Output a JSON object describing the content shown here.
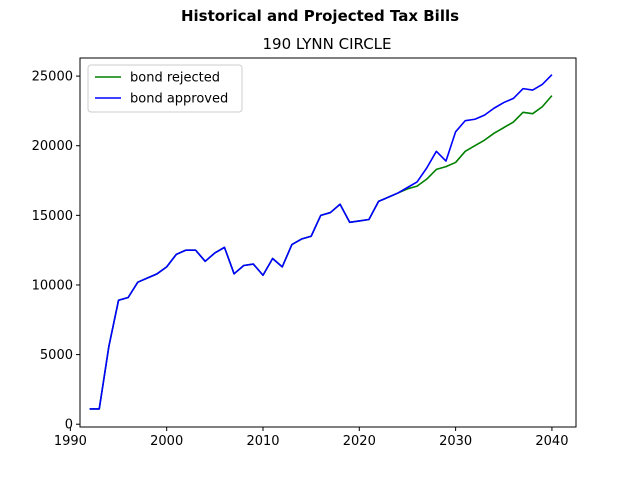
{
  "figure": {
    "suptitle": "Historical and Projected Tax Bills"
  },
  "chart_data": {
    "type": "line",
    "title": "190 LYNN CIRCLE",
    "xlabel": "",
    "ylabel": "",
    "xlim": [
      1991,
      2042.5
    ],
    "ylim": [
      -200,
      26300
    ],
    "xticks": [
      1990,
      2000,
      2010,
      2020,
      2030,
      2040
    ],
    "yticks": [
      0,
      5000,
      10000,
      15000,
      20000,
      25000
    ],
    "grid": false,
    "legend_position": "upper-left",
    "series": [
      {
        "name": "bond rejected",
        "color": "#008000",
        "x": [
          1992,
          1993,
          1994,
          1995,
          1996,
          1997,
          1998,
          1999,
          2000,
          2001,
          2002,
          2003,
          2004,
          2005,
          2006,
          2007,
          2008,
          2009,
          2010,
          2011,
          2012,
          2013,
          2014,
          2015,
          2016,
          2017,
          2018,
          2019,
          2020,
          2021,
          2022,
          2023,
          2024,
          2025,
          2026,
          2027,
          2028,
          2029,
          2030,
          2031,
          2032,
          2033,
          2034,
          2035,
          2036,
          2037,
          2038,
          2039,
          2040
        ],
        "y": [
          1100,
          1100,
          5600,
          8900,
          9100,
          10200,
          10500,
          10800,
          11300,
          12200,
          12500,
          12500,
          11700,
          12300,
          12700,
          10800,
          11400,
          11500,
          10700,
          11900,
          11300,
          12900,
          13300,
          13500,
          15000,
          15200,
          15800,
          14500,
          14600,
          14700,
          16000,
          16300,
          16600,
          16900,
          17100,
          17600,
          18300,
          18500,
          18800,
          19600,
          20000,
          20400,
          20900,
          21300,
          21700,
          22400,
          22300,
          22800,
          23600
        ]
      },
      {
        "name": "bond approved",
        "color": "#0000ff",
        "x": [
          1992,
          1993,
          1994,
          1995,
          1996,
          1997,
          1998,
          1999,
          2000,
          2001,
          2002,
          2003,
          2004,
          2005,
          2006,
          2007,
          2008,
          2009,
          2010,
          2011,
          2012,
          2013,
          2014,
          2015,
          2016,
          2017,
          2018,
          2019,
          2020,
          2021,
          2022,
          2023,
          2024,
          2025,
          2026,
          2027,
          2028,
          2029,
          2030,
          2031,
          2032,
          2033,
          2034,
          2035,
          2036,
          2037,
          2038,
          2039,
          2040
        ],
        "y": [
          1100,
          1100,
          5600,
          8900,
          9100,
          10200,
          10500,
          10800,
          11300,
          12200,
          12500,
          12500,
          11700,
          12300,
          12700,
          10800,
          11400,
          11500,
          10700,
          11900,
          11300,
          12900,
          13300,
          13500,
          15000,
          15200,
          15800,
          14500,
          14600,
          14700,
          16000,
          16300,
          16600,
          17000,
          17400,
          18400,
          19600,
          18900,
          21000,
          21800,
          21900,
          22200,
          22700,
          23100,
          23400,
          24100,
          24000,
          24400,
          25100
        ]
      }
    ]
  }
}
